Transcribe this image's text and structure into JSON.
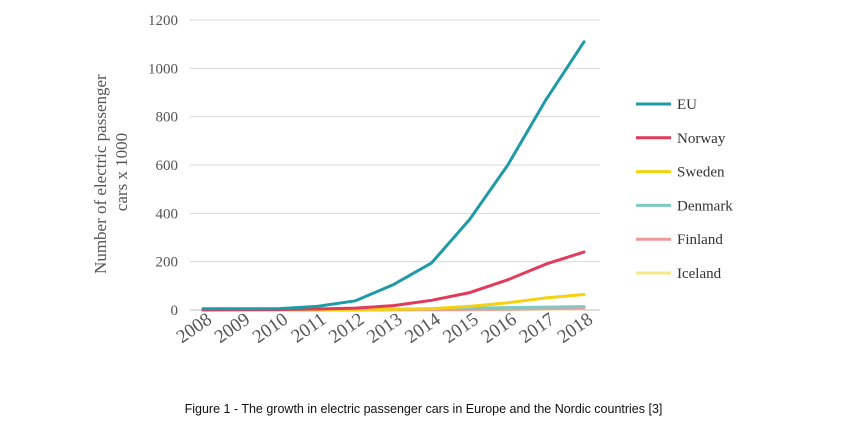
{
  "caption": "Figure 1 - The growth in electric passenger cars in Europe and the Nordic countries [3]",
  "chart_data": {
    "type": "line",
    "title": "",
    "xlabel": "",
    "ylabel_lines": [
      "Number of electric passenger",
      "cars x 1000"
    ],
    "x": [
      "2008",
      "2009",
      "2010",
      "2011",
      "2012",
      "2013",
      "2014",
      "2015",
      "2016",
      "2017",
      "2018"
    ],
    "ylim": [
      0,
      1200
    ],
    "yticks": [
      "0",
      "200",
      "400",
      "600",
      "800",
      "1000",
      "1200"
    ],
    "grid": "horizontal",
    "legend_position": "right",
    "series": [
      {
        "name": "EU",
        "color": "#1f9aa6",
        "values": [
          5,
          5,
          6,
          15,
          38,
          105,
          195,
          375,
          600,
          870,
          1110
        ]
      },
      {
        "name": "Norway",
        "color": "#e23a5a",
        "values": [
          0,
          1,
          2,
          4,
          8,
          18,
          40,
          72,
          125,
          190,
          240
        ]
      },
      {
        "name": "Sweden",
        "color": "#f4d20f",
        "values": [
          0,
          0,
          0,
          1,
          2,
          3,
          6,
          15,
          30,
          50,
          64
        ]
      },
      {
        "name": "Denmark",
        "color": "#7fc9c2",
        "values": [
          0,
          0,
          0,
          1,
          2,
          3,
          5,
          8,
          10,
          12,
          14
        ]
      },
      {
        "name": "Finland",
        "color": "#f29a9a",
        "values": [
          0,
          0,
          0,
          0,
          0,
          1,
          1,
          2,
          3,
          5,
          8
        ]
      },
      {
        "name": "Iceland",
        "color": "#f6e88a",
        "values": [
          0,
          0,
          0,
          0,
          0,
          0,
          1,
          1,
          2,
          4,
          6
        ]
      }
    ]
  }
}
